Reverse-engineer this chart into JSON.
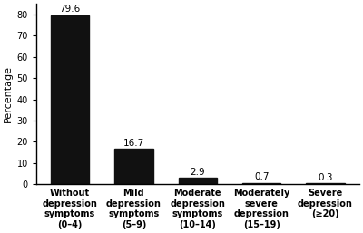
{
  "categories": [
    "Without\ndepression\nsymptoms\n(0–4)",
    "Mild\ndepression\nsymptoms\n(5–9)",
    "Moderate\ndepression\nsymptoms\n(10–14)",
    "Moderately\nsevere\ndepression\n(15–19)",
    "Severe\ndepression\n(≥20)"
  ],
  "values": [
    79.6,
    16.7,
    2.9,
    0.7,
    0.3
  ],
  "bar_color": "#111111",
  "ylabel": "Percentage",
  "ylim": [
    0,
    85
  ],
  "yticks": [
    0,
    10,
    20,
    30,
    40,
    50,
    60,
    70,
    80
  ],
  "bar_width": 0.6,
  "ylabel_fontsize": 8,
  "tick_fontsize": 7,
  "xtick_fontsize": 7,
  "value_fontsize": 7.5,
  "background_color": "#ffffff"
}
